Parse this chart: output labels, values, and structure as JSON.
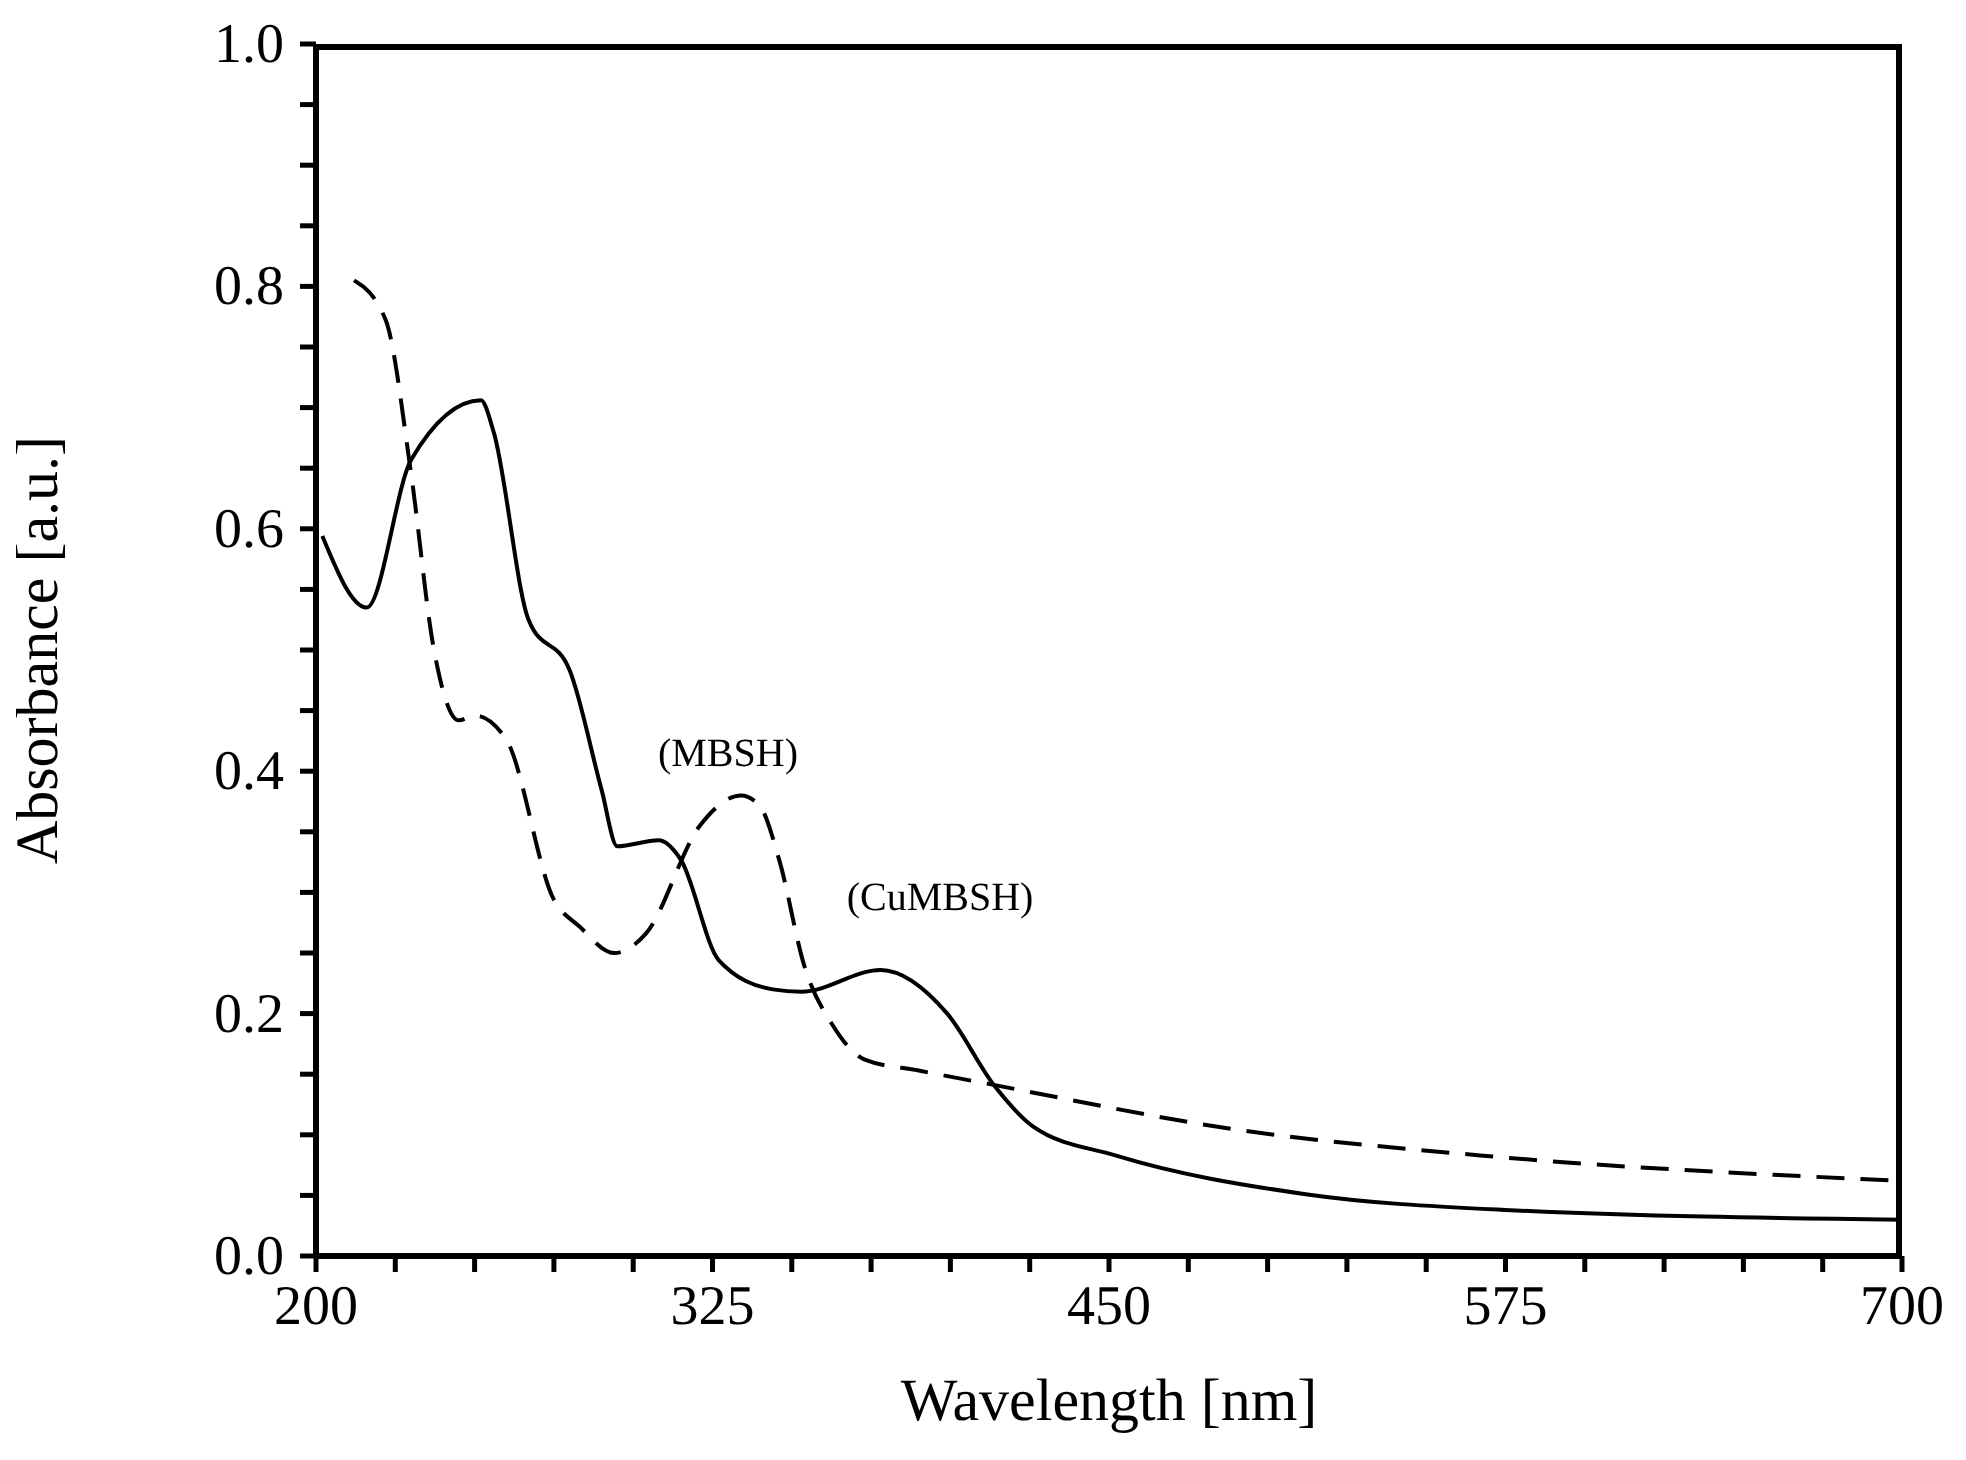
{
  "chart_data": {
    "type": "line",
    "xlabel": "Wavelength [nm]",
    "ylabel": "Absorbance [a.u.]",
    "xlim": [
      200,
      700
    ],
    "ylim": [
      0,
      1
    ],
    "xticks": [
      200,
      {
        "value": 225,
        "label": null
      },
      {
        "value": 250,
        "label": null
      },
      {
        "value": 275,
        "label": null
      },
      {
        "value": 300,
        "label": null
      },
      325,
      {
        "value": 350,
        "label": null
      },
      {
        "value": 375,
        "label": null
      },
      {
        "value": 400,
        "label": null
      },
      {
        "value": 425,
        "label": null
      },
      450,
      {
        "value": 475,
        "label": null
      },
      {
        "value": 500,
        "label": null
      },
      {
        "value": 525,
        "label": null
      },
      {
        "value": 550,
        "label": null
      },
      575,
      {
        "value": 600,
        "label": null
      },
      {
        "value": 625,
        "label": null
      },
      {
        "value": 650,
        "label": null
      },
      {
        "value": 675,
        "label": null
      },
      700
    ],
    "yticks": [
      {
        "value": 0,
        "label": "0.0"
      },
      {
        "value": 0.05,
        "label": null
      },
      {
        "value": 0.1,
        "label": null
      },
      {
        "value": 0.15,
        "label": null
      },
      0.2,
      {
        "value": 0.25,
        "label": null
      },
      {
        "value": 0.3,
        "label": null
      },
      {
        "value": 0.35,
        "label": null
      },
      0.4,
      {
        "value": 0.45,
        "label": null
      },
      {
        "value": 0.5,
        "label": null
      },
      {
        "value": 0.55,
        "label": null
      },
      0.6,
      {
        "value": 0.65,
        "label": null
      },
      {
        "value": 0.7,
        "label": null
      },
      {
        "value": 0.75,
        "label": null
      },
      0.8,
      {
        "value": 0.85,
        "label": null
      },
      {
        "value": 0.9,
        "label": null
      },
      {
        "value": 0.95,
        "label": null
      },
      {
        "value": 1,
        "label": "1.0"
      }
    ],
    "marker": "none",
    "series": [
      {
        "color": "#000000",
        "line_style": "solid",
        "x": [
          202,
          216,
          230,
          252,
          256,
          267,
          280,
          290,
          295,
          308,
          315,
          327,
          344,
          353,
          378,
          399,
          414,
          426,
          452,
          512,
          575,
          700
        ],
        "values": [
          0.594,
          0.535,
          0.657,
          0.706,
          0.68,
          0.525,
          0.483,
          0.385,
          0.338,
          0.343,
          0.327,
          0.244,
          0.22,
          0.218,
          0.236,
          0.2,
          0.14,
          0.107,
          0.083,
          0.051,
          0.038,
          0.03
        ]
      },
      {
        "color": "#000000",
        "line_style": "dashed",
        "x": [
          212,
          222,
          230,
          237,
          245,
          250,
          260,
          275,
          283,
          294,
          304,
          321,
          334,
          340,
          346,
          354,
          363,
          373,
          390,
          412,
          491,
          567,
          700
        ],
        "values": [
          0.805,
          0.772,
          0.645,
          0.503,
          0.442,
          0.446,
          0.426,
          0.294,
          0.272,
          0.25,
          0.266,
          0.355,
          0.38,
          0.371,
          0.327,
          0.239,
          0.19,
          0.162,
          0.153,
          0.142,
          0.104,
          0.083,
          0.062
        ]
      }
    ],
    "annotations": [
      "(MBSH)",
      "(CuMBSH)"
    ]
  }
}
